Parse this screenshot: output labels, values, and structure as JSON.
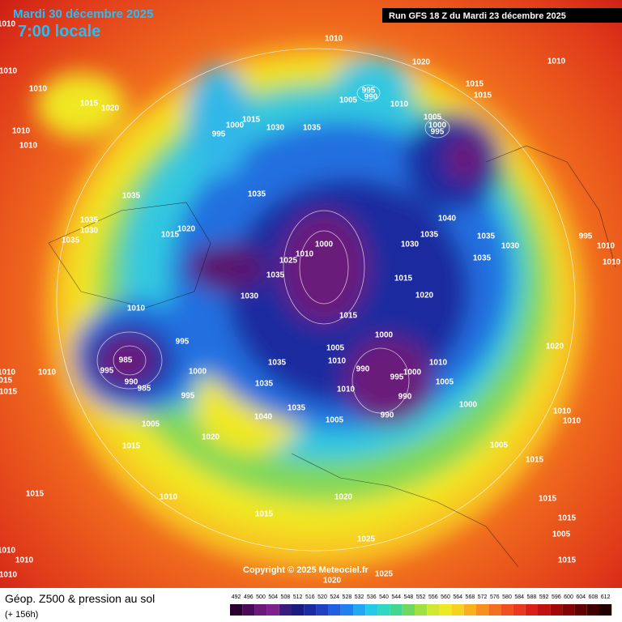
{
  "header": {
    "date": "Mardi 30 décembre 2025",
    "time": "7:00 locale",
    "run": "Run GFS 18 Z du Mardi 23 décembre 2025"
  },
  "copyright": "Copyright © 2025 Meteociel.fr",
  "footer": {
    "title": "Géop. Z500 & pression au sol",
    "lead": "(+ 156h)"
  },
  "colorbar": {
    "levels": [
      492,
      496,
      500,
      504,
      508,
      512,
      516,
      520,
      524,
      528,
      532,
      536,
      540,
      544,
      548,
      552,
      556,
      560,
      564,
      568,
      572,
      576,
      580,
      584,
      588,
      592,
      596,
      600,
      604,
      608,
      612
    ],
    "colors": [
      "#2a0030",
      "#4a0a5a",
      "#6a1a7a",
      "#80208c",
      "#3a1a7a",
      "#1a1a80",
      "#1a2aa0",
      "#1f40c0",
      "#2060e0",
      "#2080f0",
      "#20a8f0",
      "#28c8e8",
      "#30d8c0",
      "#40d890",
      "#70d860",
      "#a0e040",
      "#d0e830",
      "#f0e820",
      "#f8d020",
      "#f8b020",
      "#f89020",
      "#f07020",
      "#f05020",
      "#e83820",
      "#d82018",
      "#c01010",
      "#a00808",
      "#800404",
      "#600202",
      "#400000",
      "#200000"
    ]
  },
  "isobar_labels": [
    1010,
    1010,
    1010,
    1015,
    1020,
    1010,
    1010,
    1035,
    1035,
    1030,
    1035,
    1020,
    1015,
    995,
    1000,
    1015,
    1030,
    1035,
    1035,
    995,
    990,
    1005,
    1010,
    1010,
    1020,
    1015,
    1015,
    1005,
    1000,
    995,
    1010,
    1040,
    1035,
    1030,
    1035,
    1030,
    1035,
    995,
    1010,
    1010,
    1000,
    1010,
    1025,
    1035,
    1030,
    1015,
    1020,
    1010,
    1015,
    1000,
    995,
    985,
    995,
    990,
    985,
    1010,
    1015,
    1010,
    1015,
    1000,
    995,
    1035,
    1035,
    1005,
    1010,
    990,
    995,
    1000,
    1010,
    1005,
    1010,
    990,
    990,
    1000,
    1005,
    1040,
    1035,
    1005,
    1020,
    1015,
    1005,
    1020,
    1010,
    1010,
    1015,
    1015,
    1010,
    1020,
    1015,
    1025,
    1015,
    1015,
    1005,
    1010,
    1010,
    1010,
    1025,
    1015,
    1020
  ]
}
